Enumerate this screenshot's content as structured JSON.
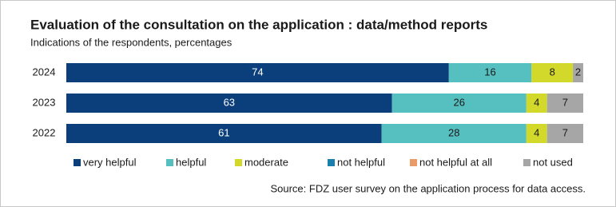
{
  "chart_data": {
    "type": "stacked-bar",
    "orientation": "horizontal",
    "title": "Evaluation of the consultation on the application : data/method reports",
    "subtitle": "Indications of the respondents, percentages",
    "categories": [
      "2024",
      "2023",
      "2022"
    ],
    "series": [
      {
        "name": "very helpful",
        "color": "#0b3f7c",
        "values": [
          74,
          63,
          61
        ]
      },
      {
        "name": "helpful",
        "color": "#56bfc0",
        "values": [
          16,
          26,
          28
        ]
      },
      {
        "name": "moderate",
        "color": "#d3d92b",
        "values": [
          8,
          4,
          4
        ]
      },
      {
        "name": "not helpful",
        "color": "#1b7fae",
        "values": [
          0,
          0,
          0
        ]
      },
      {
        "name": "not helpful at all",
        "color": "#e99c68",
        "values": [
          0,
          0,
          0
        ]
      },
      {
        "name": "not used",
        "color": "#a6a6a6",
        "values": [
          2,
          7,
          7
        ]
      }
    ],
    "xlim": [
      0,
      100
    ],
    "source": "Source: FDZ user survey on the application process for data access."
  }
}
